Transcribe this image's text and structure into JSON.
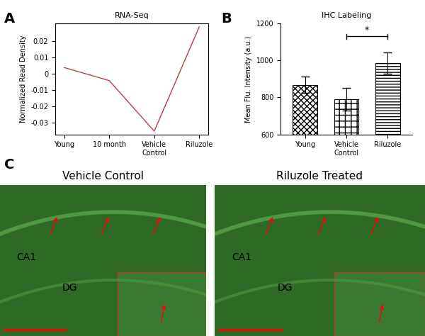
{
  "chart_data": [
    {
      "type": "line",
      "panel_label": "A",
      "title": "RNA-Seq",
      "y_label": "Normalized Read Density",
      "categories": [
        "Young",
        "10 month",
        "Vehicle Control",
        "Riluzole"
      ],
      "values": [
        0.004,
        -0.004,
        -0.035,
        0.029
      ],
      "color": "#b5404a",
      "ylim": [
        -0.037,
        0.031
      ],
      "yticks": [
        -0.03,
        -0.02,
        -0.01,
        0,
        0.01,
        0.02
      ],
      "grid": false
    },
    {
      "type": "bar",
      "panel_label": "B",
      "title": "IHC Labeling",
      "y_label": "Mean Flu. Intensity (a.u.)",
      "categories": [
        "Young",
        "Vehicle Control",
        "Riluzole"
      ],
      "values": [
        868,
        790,
        985
      ],
      "errors": [
        45,
        60,
        58
      ],
      "color": "#ffffff",
      "ylim": [
        600,
        1200
      ],
      "yticks": [
        600,
        800,
        1000,
        1200
      ],
      "grid": false,
      "annotations": [
        {
          "text": "*",
          "between": [
            "Vehicle Control",
            "Riluzole"
          ],
          "y": 1130
        }
      ]
    }
  ],
  "images": {
    "panel_label": "C",
    "items": [
      {
        "title": "Vehicle Control",
        "regions": [
          "CA1",
          "DG"
        ]
      },
      {
        "title": "Riluzole Treated",
        "regions": [
          "CA1",
          "DG"
        ]
      }
    ]
  }
}
